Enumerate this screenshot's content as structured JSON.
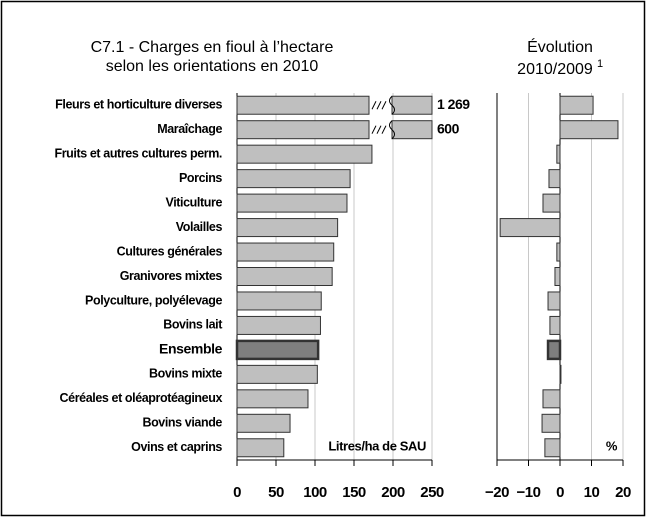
{
  "chart_data": [
    {
      "type": "hbar",
      "title": [
        "C7.1 - Charges en fioul à l’hectare",
        "selon les orientations en 2010"
      ],
      "categories": [
        "Fleurs et horticulture diverses",
        "Maraîchage",
        "Fruits et autres cultures perm.",
        "Porcins",
        "Viticulture",
        "Volailles",
        "Cultures générales",
        "Granivores mixtes",
        "Polyculture, polyélevage",
        "Bovins lait",
        "Ensemble",
        "Bovins mixte",
        "Céréales et oléaprotéagineux",
        "Bovins viande",
        "Ovins et caprins"
      ],
      "values": [
        1269,
        600,
        173,
        145,
        141,
        129,
        124,
        122,
        108,
        107,
        104,
        103,
        91,
        68,
        60
      ],
      "value_labels": [
        "1 269",
        "600",
        null,
        null,
        null,
        null,
        null,
        null,
        null,
        null,
        null,
        null,
        null,
        null,
        null
      ],
      "highlight": "Ensemble",
      "axis_label": "Litres/ha de SAU",
      "color": "#bfbfbf",
      "highlight_color": "#7f7f7f",
      "xlim": [
        0,
        250
      ],
      "xticks": [
        0,
        50,
        100,
        150,
        200,
        250
      ],
      "grid": true
    },
    {
      "type": "hbar",
      "title": [
        "Évolution",
        "2010/2009"
      ],
      "title_superscript": "1",
      "values": [
        10.5,
        18.4,
        -1,
        -3.5,
        -5.4,
        -19,
        -1,
        -1.6,
        -3.8,
        -3.2,
        -3.8,
        0.3,
        -5.4,
        -5.7,
        -4.8
      ],
      "axis_label": "%",
      "color": "#bfbfbf",
      "highlight_color": "#7f7f7f",
      "xlim": [
        -20,
        20
      ],
      "xticks": [
        {
          "value": -20,
          "label": "−20"
        },
        {
          "value": -10,
          "label": "−10"
        },
        0,
        10,
        20
      ],
      "grid": true
    }
  ]
}
